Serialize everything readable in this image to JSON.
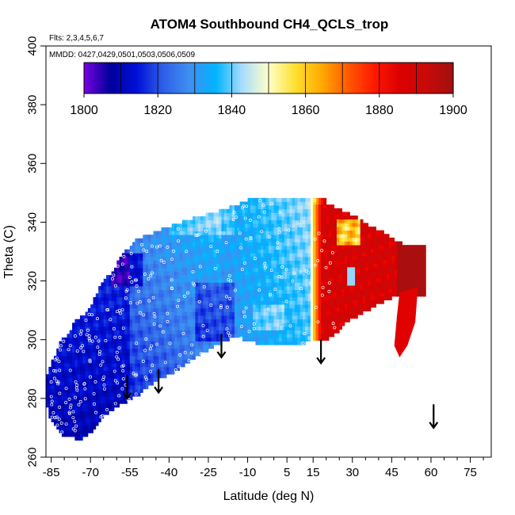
{
  "chart_data": {
    "type": "heatmap",
    "title": "ATOM4 Southbound CH4_QCLS_trop",
    "flights_label": "Flts: 2,3,4,5,6,7",
    "dates_label": "MMDD: 0427,0429,0501,0503,0506,0509",
    "xlabel": "Latitude (deg N)",
    "ylabel": "Theta (C)",
    "xlim": [
      -87,
      83
    ],
    "ylim": [
      260,
      400
    ],
    "x_ticks": [
      -85,
      -70,
      -55,
      -40,
      -25,
      -10,
      5,
      15,
      30,
      45,
      60,
      75
    ],
    "y_ticks": [
      260,
      280,
      300,
      320,
      340,
      360,
      380,
      400
    ],
    "colorbar": {
      "min": 1800,
      "max": 1900,
      "ticks": [
        1800,
        1820,
        1840,
        1860,
        1880,
        1900
      ],
      "colors": [
        "#7b00e0",
        "#00009c",
        "#0010d8",
        "#2f5fe8",
        "#3f8ff0",
        "#00b4ff",
        "#a8dcff",
        "#ffffc8",
        "#ffe030",
        "#ffaa00",
        "#ff5a00",
        "#ff1800",
        "#dc0000",
        "#c80a0a",
        "#a01010"
      ]
    },
    "sampling_gap_arrows": [
      {
        "lat": -56,
        "theta": 284
      },
      {
        "lat": -44,
        "theta": 286
      },
      {
        "lat": -20,
        "theta": 298
      },
      {
        "lat": 18,
        "theta": 296
      },
      {
        "lat": 61,
        "theta": 274
      }
    ],
    "field_regions": [
      {
        "name": "southern-low-values",
        "lat_range": [
          -87,
          -55
        ],
        "theta_range": [
          266,
          315
        ],
        "ch4_approx": 1812
      },
      {
        "name": "southern-midlatitude-values",
        "lat_range": [
          -55,
          -20
        ],
        "theta_range": [
          280,
          340
        ],
        "ch4_approx": 1830
      },
      {
        "name": "tropical-values",
        "lat_range": [
          -20,
          15
        ],
        "theta_range": [
          300,
          350
        ],
        "ch4_approx": 1840
      },
      {
        "name": "northern-high-values",
        "lat_range": [
          15,
          60
        ],
        "theta_range": [
          295,
          345
        ],
        "ch4_approx": 1895
      }
    ]
  }
}
